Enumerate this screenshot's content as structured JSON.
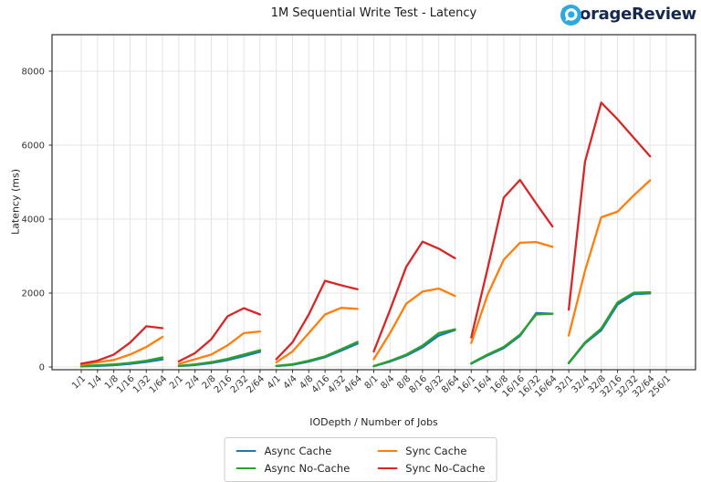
{
  "brand": {
    "name": "StorageReview",
    "accent_color": "#2ba9e0",
    "text_color": "#16294d"
  },
  "chart_data": {
    "type": "line",
    "title": "1M Sequential Write Test - Latency",
    "xlabel": "IODepth / Number of Jobs",
    "ylabel": "Latency (ms)",
    "categories": [
      "1/1",
      "1/4",
      "1/8",
      "1/16",
      "1/32",
      "1/64",
      "2/1",
      "2/4",
      "2/8",
      "2/16",
      "2/32",
      "2/64",
      "4/1",
      "4/4",
      "4/8",
      "4/16",
      "4/32",
      "4/64",
      "8/1",
      "8/4",
      "8/8",
      "8/16",
      "8/32",
      "8/64",
      "16/1",
      "16/4",
      "16/8",
      "16/16",
      "16/32",
      "16/64",
      "32/1",
      "32/4",
      "32/8",
      "32/16",
      "32/32",
      "32/64",
      "256/1"
    ],
    "yticks": [
      0,
      2000,
      4000,
      6000,
      8000
    ],
    "ylim": [
      0,
      9000
    ],
    "grid": true,
    "legend_position": "bottom-center",
    "cluster_size": 6,
    "no_data_categories": [
      "256/1"
    ],
    "series": [
      {
        "name": "Async Cache",
        "color": "#1f77b4",
        "clusters": [
          [
            15,
            30,
            50,
            85,
            135,
            205
          ],
          [
            25,
            55,
            105,
            185,
            295,
            410
          ],
          [
            25,
            60,
            145,
            265,
            445,
            630
          ],
          [
            20,
            145,
            305,
            530,
            850,
            1000
          ],
          [
            90,
            310,
            510,
            840,
            1460,
            1440
          ],
          [
            100,
            640,
            990,
            1690,
            1970,
            1990
          ]
        ]
      },
      {
        "name": "Async No-Cache",
        "color": "#2ca02c",
        "clusters": [
          [
            25,
            45,
            70,
            110,
            170,
            260
          ],
          [
            30,
            70,
            130,
            220,
            335,
            455
          ],
          [
            30,
            75,
            170,
            290,
            480,
            680
          ],
          [
            25,
            165,
            335,
            580,
            915,
            1020
          ],
          [
            100,
            335,
            540,
            875,
            1420,
            1440
          ],
          [
            110,
            665,
            1040,
            1745,
            2010,
            2020
          ]
        ]
      },
      {
        "name": "Sync Cache",
        "color": "#ff7f0e",
        "clusters": [
          [
            60,
            125,
            190,
            335,
            540,
            815
          ],
          [
            85,
            210,
            335,
            585,
            915,
            960
          ],
          [
            125,
            420,
            915,
            1420,
            1600,
            1570
          ],
          [
            210,
            915,
            1710,
            2040,
            2120,
            1920
          ],
          [
            650,
            1950,
            2900,
            3360,
            3380,
            3250
          ],
          [
            850,
            2600,
            4050,
            4200,
            4640,
            5050
          ]
        ]
      },
      {
        "name": "Sync No-Cache",
        "color": "#d62728",
        "clusters": [
          [
            90,
            170,
            335,
            660,
            1100,
            1050
          ],
          [
            150,
            375,
            750,
            1370,
            1590,
            1420
          ],
          [
            210,
            670,
            1420,
            2330,
            2210,
            2100
          ],
          [
            420,
            1540,
            2710,
            3390,
            3200,
            2940
          ],
          [
            800,
            2650,
            4580,
            5060,
            4420,
            3800
          ],
          [
            1550,
            5550,
            7150,
            6700,
            6200,
            5700
          ]
        ]
      }
    ]
  }
}
